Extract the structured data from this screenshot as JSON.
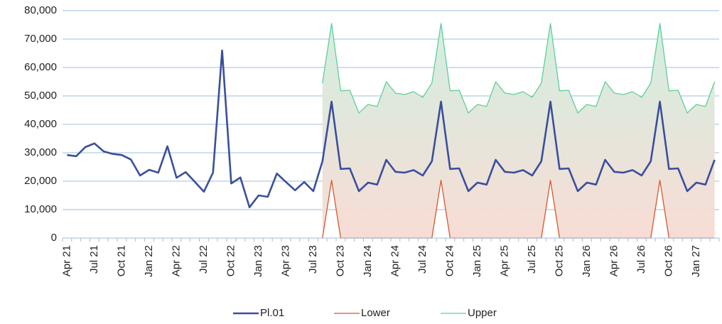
{
  "chart_data": {
    "type": "line",
    "categories": [
      "Apr 21",
      null,
      null,
      "Jul 21",
      null,
      null,
      "Oct 21",
      null,
      null,
      "Jan 22",
      null,
      null,
      "Apr 22",
      null,
      null,
      "Jul 22",
      null,
      null,
      "Oct 22",
      null,
      null,
      "Jan 23",
      null,
      null,
      "Apr 23",
      null,
      null,
      "Jul 23",
      null,
      null,
      "Oct 23",
      null,
      null,
      "Jan 24",
      null,
      null,
      "Apr 24",
      null,
      null,
      "Jul 24",
      null,
      null,
      "Oct 24",
      null,
      null,
      "Jan 25",
      null,
      null,
      "Apr 25",
      null,
      null,
      "Jul 25",
      null,
      null,
      "Oct 25",
      null,
      null,
      "Jan 26",
      null,
      null,
      "Apr 26",
      null,
      null,
      "Jul 26",
      null,
      null,
      "Oct 26",
      null,
      null,
      "Jan 27",
      null,
      null
    ],
    "series": [
      {
        "name": "Pl.01",
        "color": "#3b4f9c",
        "values": [
          29200,
          28800,
          32000,
          33300,
          30500,
          29600,
          29200,
          27600,
          22000,
          24000,
          23000,
          32300,
          21200,
          23200,
          19800,
          16300,
          23000,
          66000,
          19200,
          21300,
          10800,
          15000,
          14500,
          22700,
          19700,
          16800,
          19700,
          16500,
          27000,
          48000,
          24300,
          24500,
          16500,
          19500,
          18800,
          27500,
          23300,
          23000,
          23900,
          22000,
          27000,
          48000,
          24300,
          24500,
          16500,
          19500,
          18800,
          27500,
          23300,
          23000,
          23900,
          22000,
          27000,
          48000,
          24300,
          24500,
          16500,
          19500,
          18800,
          27500,
          23300,
          23000,
          23900,
          22000,
          27000,
          48000,
          24300,
          24500,
          16500,
          19500,
          18800,
          27500
        ]
      },
      {
        "name": "Lower",
        "color": "#d4582e",
        "values": [
          null,
          null,
          null,
          null,
          null,
          null,
          null,
          null,
          null,
          null,
          null,
          null,
          null,
          null,
          null,
          null,
          null,
          null,
          null,
          null,
          null,
          null,
          null,
          null,
          null,
          null,
          null,
          null,
          0,
          20300,
          0,
          0,
          0,
          0,
          0,
          0,
          0,
          0,
          0,
          0,
          0,
          20300,
          0,
          0,
          0,
          0,
          0,
          0,
          0,
          0,
          0,
          0,
          0,
          20300,
          0,
          0,
          0,
          0,
          0,
          0,
          0,
          0,
          0,
          0,
          0,
          20300,
          0,
          0,
          0,
          0,
          0,
          0
        ]
      },
      {
        "name": "Upper",
        "color": "#5fcf9a",
        "values": [
          null,
          null,
          null,
          null,
          null,
          null,
          null,
          null,
          null,
          null,
          null,
          null,
          null,
          null,
          null,
          null,
          null,
          null,
          null,
          null,
          null,
          null,
          null,
          null,
          null,
          null,
          null,
          null,
          54500,
          75500,
          51800,
          52000,
          44000,
          47000,
          46300,
          55000,
          51000,
          50500,
          51500,
          49500,
          54500,
          75500,
          51800,
          52000,
          44000,
          47000,
          46300,
          55000,
          51000,
          50500,
          51500,
          49500,
          54500,
          75500,
          51800,
          52000,
          44000,
          47000,
          46300,
          55000,
          51000,
          50500,
          51500,
          49500,
          54500,
          75500,
          51800,
          52000,
          44000,
          47000,
          46300,
          55000
        ]
      }
    ],
    "ylim": [
      0,
      80000
    ],
    "yticks": [
      0,
      {
        "value": 10000,
        "label": "10,000"
      },
      {
        "value": 20000,
        "label": "20,000"
      },
      {
        "value": 30000,
        "label": "30,000"
      },
      {
        "value": 40000,
        "label": "40,000"
      },
      {
        "value": 50000,
        "label": "50,000"
      },
      {
        "value": 60000,
        "label": "60,000"
      },
      {
        "value": 70000,
        "label": "70,000"
      },
      {
        "value": 80000,
        "label": "80,000"
      }
    ],
    "grid": true,
    "legend": "bottom"
  }
}
